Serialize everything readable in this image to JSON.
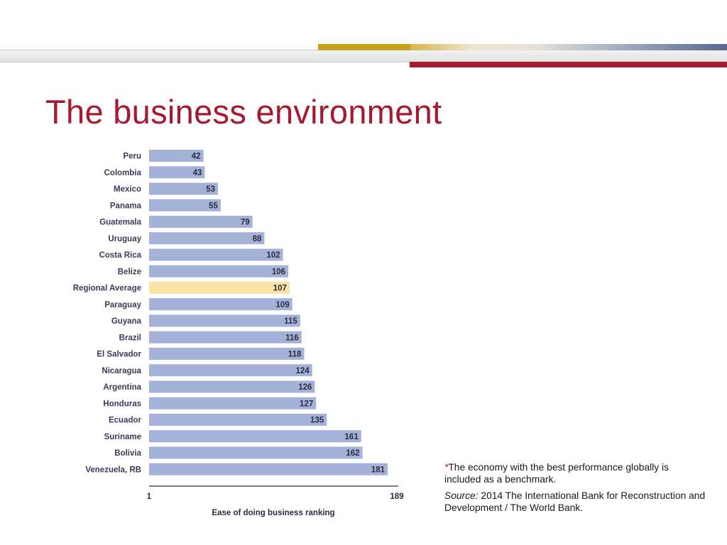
{
  "slide": {
    "title": "The business environment",
    "footnote": {
      "star": "*",
      "note": "The economy with the best performance globally is included as a benchmark.",
      "source_label": "Source:",
      "source_text": "2014 The International Bank for Reconstruction and Development / The World Bank."
    }
  },
  "colors": {
    "title": "#a6192e",
    "bar": "#a4b1d8",
    "highlight_bar": "#fde2a8",
    "accent_red": "#a6192e",
    "accent_gold": "#c8a21a"
  },
  "chart_data": {
    "type": "bar",
    "orientation": "horizontal",
    "title": "",
    "xlabel": "Ease of doing business ranking",
    "ylabel": "",
    "xlim": [
      1,
      189
    ],
    "xticks": [
      "1",
      "189"
    ],
    "grid": false,
    "legend": "none",
    "highlight_category": "Regional Average",
    "categories": [
      "Peru",
      "Colombia",
      "Mexico",
      "Panama",
      "Guatemala",
      "Uruguay",
      "Costa Rica",
      "Belize",
      "Regional Average",
      "Paraguay",
      "Guyana",
      "Brazil",
      "El Salvador",
      "Nicaragua",
      "Argentina",
      "Honduras",
      "Ecuador",
      "Suriname",
      "Bolivia",
      "Venezuela, RB"
    ],
    "values": [
      42,
      43,
      53,
      55,
      79,
      88,
      102,
      106,
      107,
      109,
      115,
      116,
      118,
      124,
      126,
      127,
      135,
      161,
      162,
      181
    ]
  }
}
